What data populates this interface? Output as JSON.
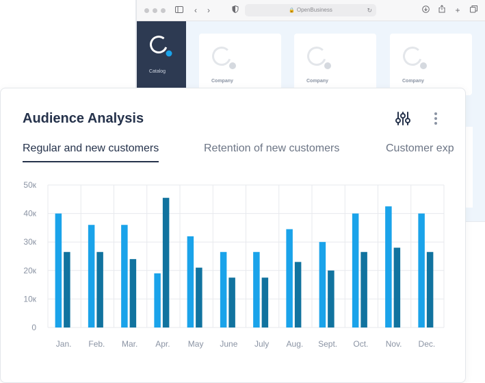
{
  "browser": {
    "url": "OpenBusiness",
    "sidebar_label": "Catalog",
    "cards": [
      {
        "label": "Company"
      },
      {
        "label": "Company"
      },
      {
        "label": "Company"
      }
    ]
  },
  "panel": {
    "title": "Audience Analysis",
    "tabs": [
      {
        "label": "Regular and new customers",
        "active": true
      },
      {
        "label": "Retention of new customers",
        "active": false
      },
      {
        "label": "Customer exp",
        "active": false
      }
    ]
  },
  "colors": {
    "series_a": "#1aa3ea",
    "series_b": "#11739f",
    "grid": "#e7e9ed",
    "axis_text": "#8a93a3"
  },
  "chart_data": {
    "type": "bar",
    "categories": [
      "Jan.",
      "Feb.",
      "Mar.",
      "Apr.",
      "May",
      "June",
      "July",
      "Aug.",
      "Sept.",
      "Oct.",
      "Nov.",
      "Dec."
    ],
    "y_tick_labels": [
      "0",
      "10к",
      "20к",
      "30к",
      "40к",
      "50к"
    ],
    "ylim": [
      0,
      50000
    ],
    "grid": true,
    "series": [
      {
        "values": [
          40000,
          36000,
          36000,
          19000,
          32000,
          26500,
          26500,
          34500,
          30000,
          40000,
          42500,
          40000
        ]
      },
      {
        "values": [
          26500,
          26500,
          24000,
          45500,
          21000,
          17500,
          17500,
          23000,
          20000,
          26500,
          28000,
          26500
        ]
      }
    ]
  }
}
